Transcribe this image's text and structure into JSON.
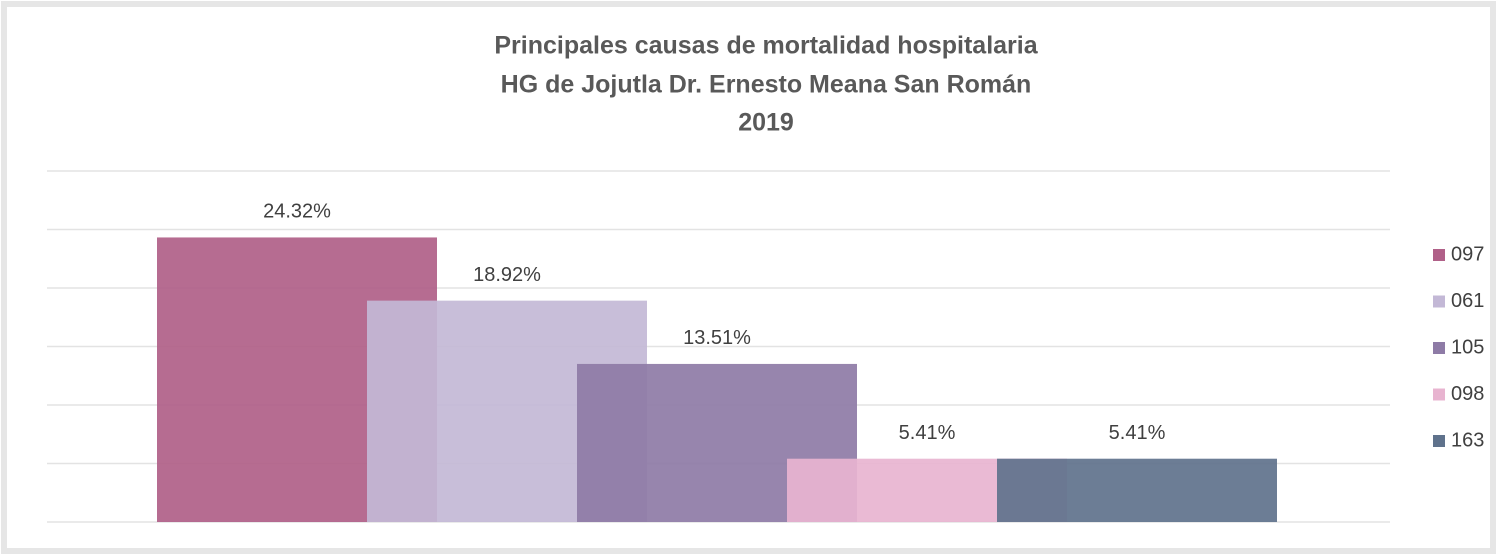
{
  "chart_data": {
    "type": "bar",
    "title": [
      "Principales causas de mortalidad hospitalaria",
      "HG de Jojutla Dr. Ernesto Meana San Román",
      "2019"
    ],
    "series": [
      {
        "name": "097",
        "color": "#b06088",
        "values": [
          24.32
        ],
        "value_labels": [
          "24.32%"
        ]
      },
      {
        "name": "061",
        "color": "#c3b8d6",
        "values": [
          18.92
        ],
        "value_labels": [
          "18.92%"
        ]
      },
      {
        "name": "105",
        "color": "#8e7ba6",
        "values": [
          13.51
        ],
        "value_labels": [
          "13.51%"
        ]
      },
      {
        "name": "098",
        "color": "#e8b4d0",
        "values": [
          5.41
        ],
        "value_labels": [
          "5.41%"
        ]
      },
      {
        "name": "163",
        "color": "#5f728c",
        "values": [
          5.41
        ],
        "value_labels": [
          "5.41%"
        ]
      }
    ],
    "ylim": [
      0,
      30
    ],
    "yticks": [
      0,
      5,
      10,
      15,
      20,
      25,
      30
    ],
    "grid": true,
    "legend": "right"
  }
}
